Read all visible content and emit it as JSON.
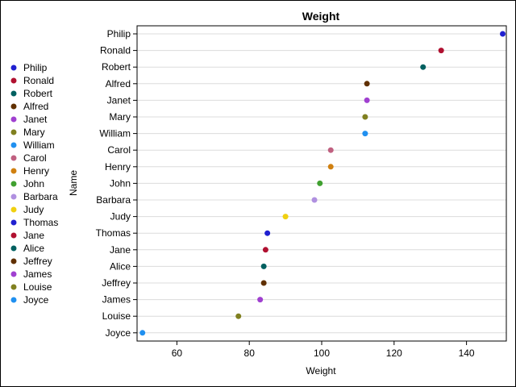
{
  "chart_data": {
    "type": "scatter",
    "title": "Weight",
    "xlabel": "Weight",
    "ylabel": "Name",
    "xlim": [
      49,
      151
    ],
    "xticks": [
      60,
      80,
      100,
      120,
      140
    ],
    "grid": "horizontal",
    "legend_placement": "left",
    "categories": [
      "Philip",
      "Ronald",
      "Robert",
      "Alfred",
      "Janet",
      "Mary",
      "William",
      "Carol",
      "Henry",
      "John",
      "Barbara",
      "Judy",
      "Thomas",
      "Jane",
      "Alice",
      "Jeffrey",
      "James",
      "Louise",
      "Joyce"
    ],
    "values": [
      150,
      133,
      128,
      112.5,
      112.5,
      112,
      112,
      102.5,
      102.5,
      99.5,
      98,
      90,
      85,
      84.5,
      84,
      84,
      83,
      77,
      50.5
    ],
    "colors": [
      "#2020d0",
      "#b01030",
      "#006060",
      "#603000",
      "#a040d0",
      "#808020",
      "#2090f0",
      "#c06080",
      "#d08010",
      "#40a030",
      "#b090e0",
      "#f0d010",
      "#2020d0",
      "#b01030",
      "#006060",
      "#603000",
      "#a040d0",
      "#808020",
      "#2090f0"
    ]
  }
}
